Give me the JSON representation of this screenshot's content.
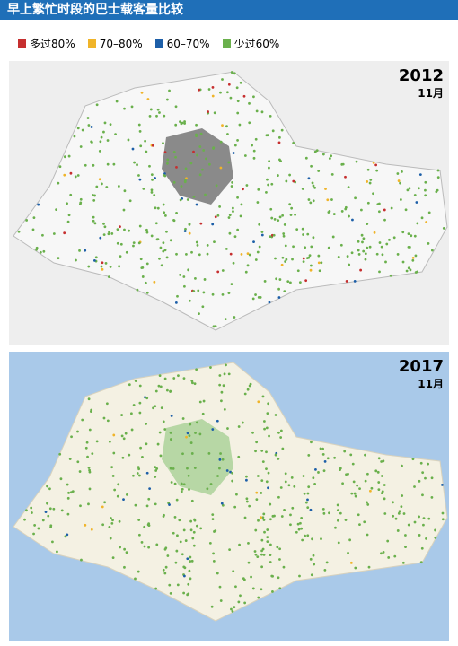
{
  "header": {
    "title": "早上繁忙时段的巴士载客量比较"
  },
  "legend": [
    {
      "label": "多过80%",
      "color": "#c62f2f"
    },
    {
      "label": "70–80%",
      "color": "#f0b429"
    },
    {
      "label": "60–70%",
      "color": "#1d5fa8"
    },
    {
      "label": "少过60%",
      "color": "#6ab04c"
    }
  ],
  "panels": [
    {
      "year": "2012",
      "month": "11月"
    },
    {
      "year": "2017",
      "month": "11月"
    }
  ]
}
